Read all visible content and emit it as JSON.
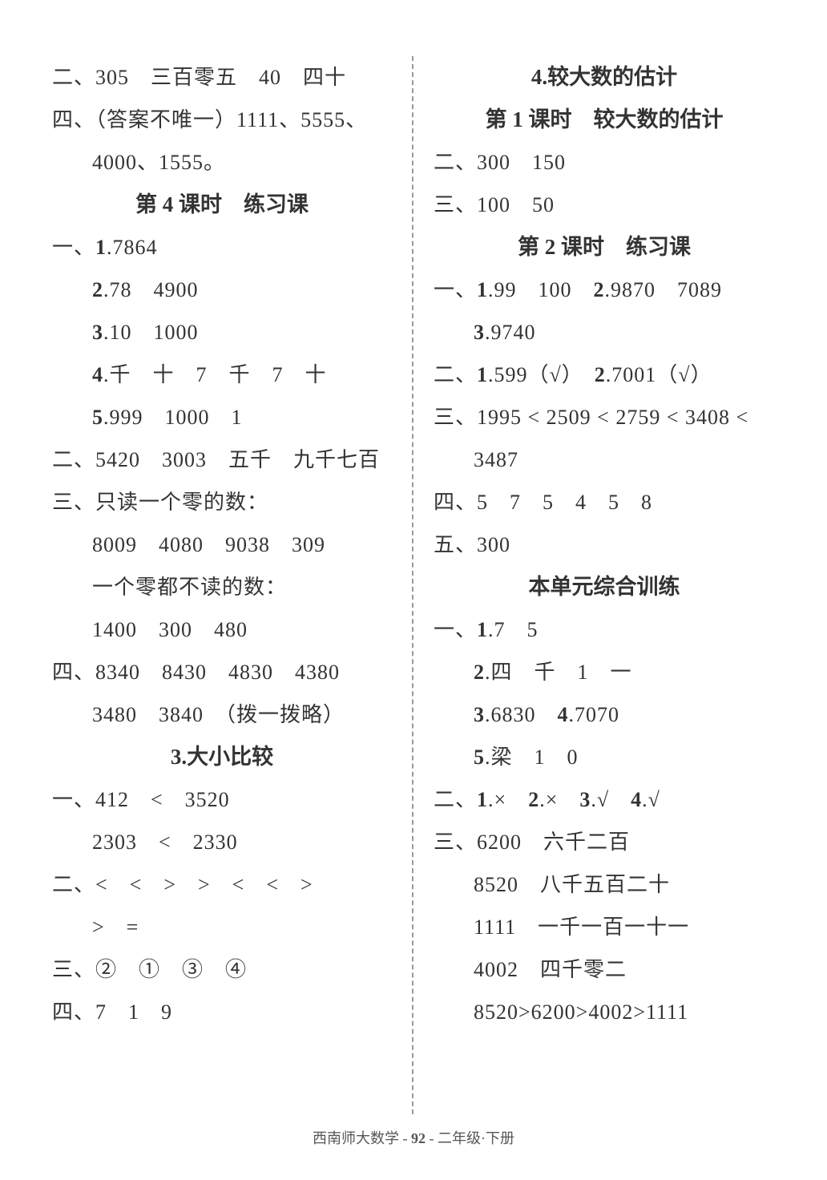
{
  "left": {
    "l1": "二、305　三百零五　40　四十",
    "l2": "四、（答案不唯一）1111、5555、",
    "l3": "4000、1555。",
    "h1": "第 4 课时　练习课",
    "l4a": "一、",
    "l4b": "1",
    "l4c": ".7864",
    "l5a": "2",
    "l5b": ".78　4900",
    "l6a": "3",
    "l6b": ".10　1000",
    "l7a": "4",
    "l7b": ".千　十　7　千　7　十",
    "l8a": "5",
    "l8b": ".999　1000　1",
    "l9": "二、5420　3003　五千　九千七百",
    "l10": "三、只读一个零的数：",
    "l11": "8009　4080　9038　309",
    "l12": "一个零都不读的数：",
    "l13": "1400　300　480",
    "l14": "四、8340　8430　4830　4380",
    "l15": "3480　3840　（拨一拨略）",
    "h2": "3.大小比较",
    "l16": "一、412　<　3520",
    "l17": "2303　<　2330",
    "l18": "二、<　<　>　>　<　<　>",
    "l19": ">　=",
    "l20": "三、②　①　③　④",
    "l21": "四、7　1　9"
  },
  "right": {
    "h1": "4.较大数的估计",
    "h2": "第 1 课时　较大数的估计",
    "l1": "二、300　150",
    "l2": "三、100　50",
    "h3": "第 2 课时　练习课",
    "l3a": "一、",
    "l3b": "1",
    "l3c": ".99　100　",
    "l3d": "2",
    "l3e": ".9870　7089",
    "l4a": "3",
    "l4b": ".9740",
    "l5a": "二、",
    "l5b": "1",
    "l5c": ".599（√）　",
    "l5d": "2",
    "l5e": ".7001（√）",
    "l6": "三、1995 < 2509 < 2759 < 3408 <",
    "l7": "3487",
    "l8": "四、5　7　5　4　5　8",
    "l9": "五、300",
    "h4": "本单元综合训练",
    "l10a": "一、",
    "l10b": "1",
    "l10c": ".7　5",
    "l11a": "2",
    "l11b": ".四　千　1　一",
    "l12a": "3",
    "l12b": ".6830　",
    "l12c": "4",
    "l12d": ".7070",
    "l13a": "5",
    "l13b": ".梁　1　0",
    "l14a": "二、",
    "l14b": "1",
    "l14c": ".×　",
    "l14d": "2",
    "l14e": ".×　",
    "l14f": "3",
    "l14g": ".√　",
    "l14h": "4",
    "l14i": ".√",
    "l15": "三、6200　六千二百",
    "l16": "8520　八千五百二十",
    "l17": "1111　一千一百一十一",
    "l18": "4002　四千零二",
    "l19": "8520>6200>4002>1111"
  },
  "footer": {
    "left": "西南师大数学",
    "sep1": " - ",
    "page": "92",
    "sep2": " - ",
    "right": "二年级·下册"
  }
}
